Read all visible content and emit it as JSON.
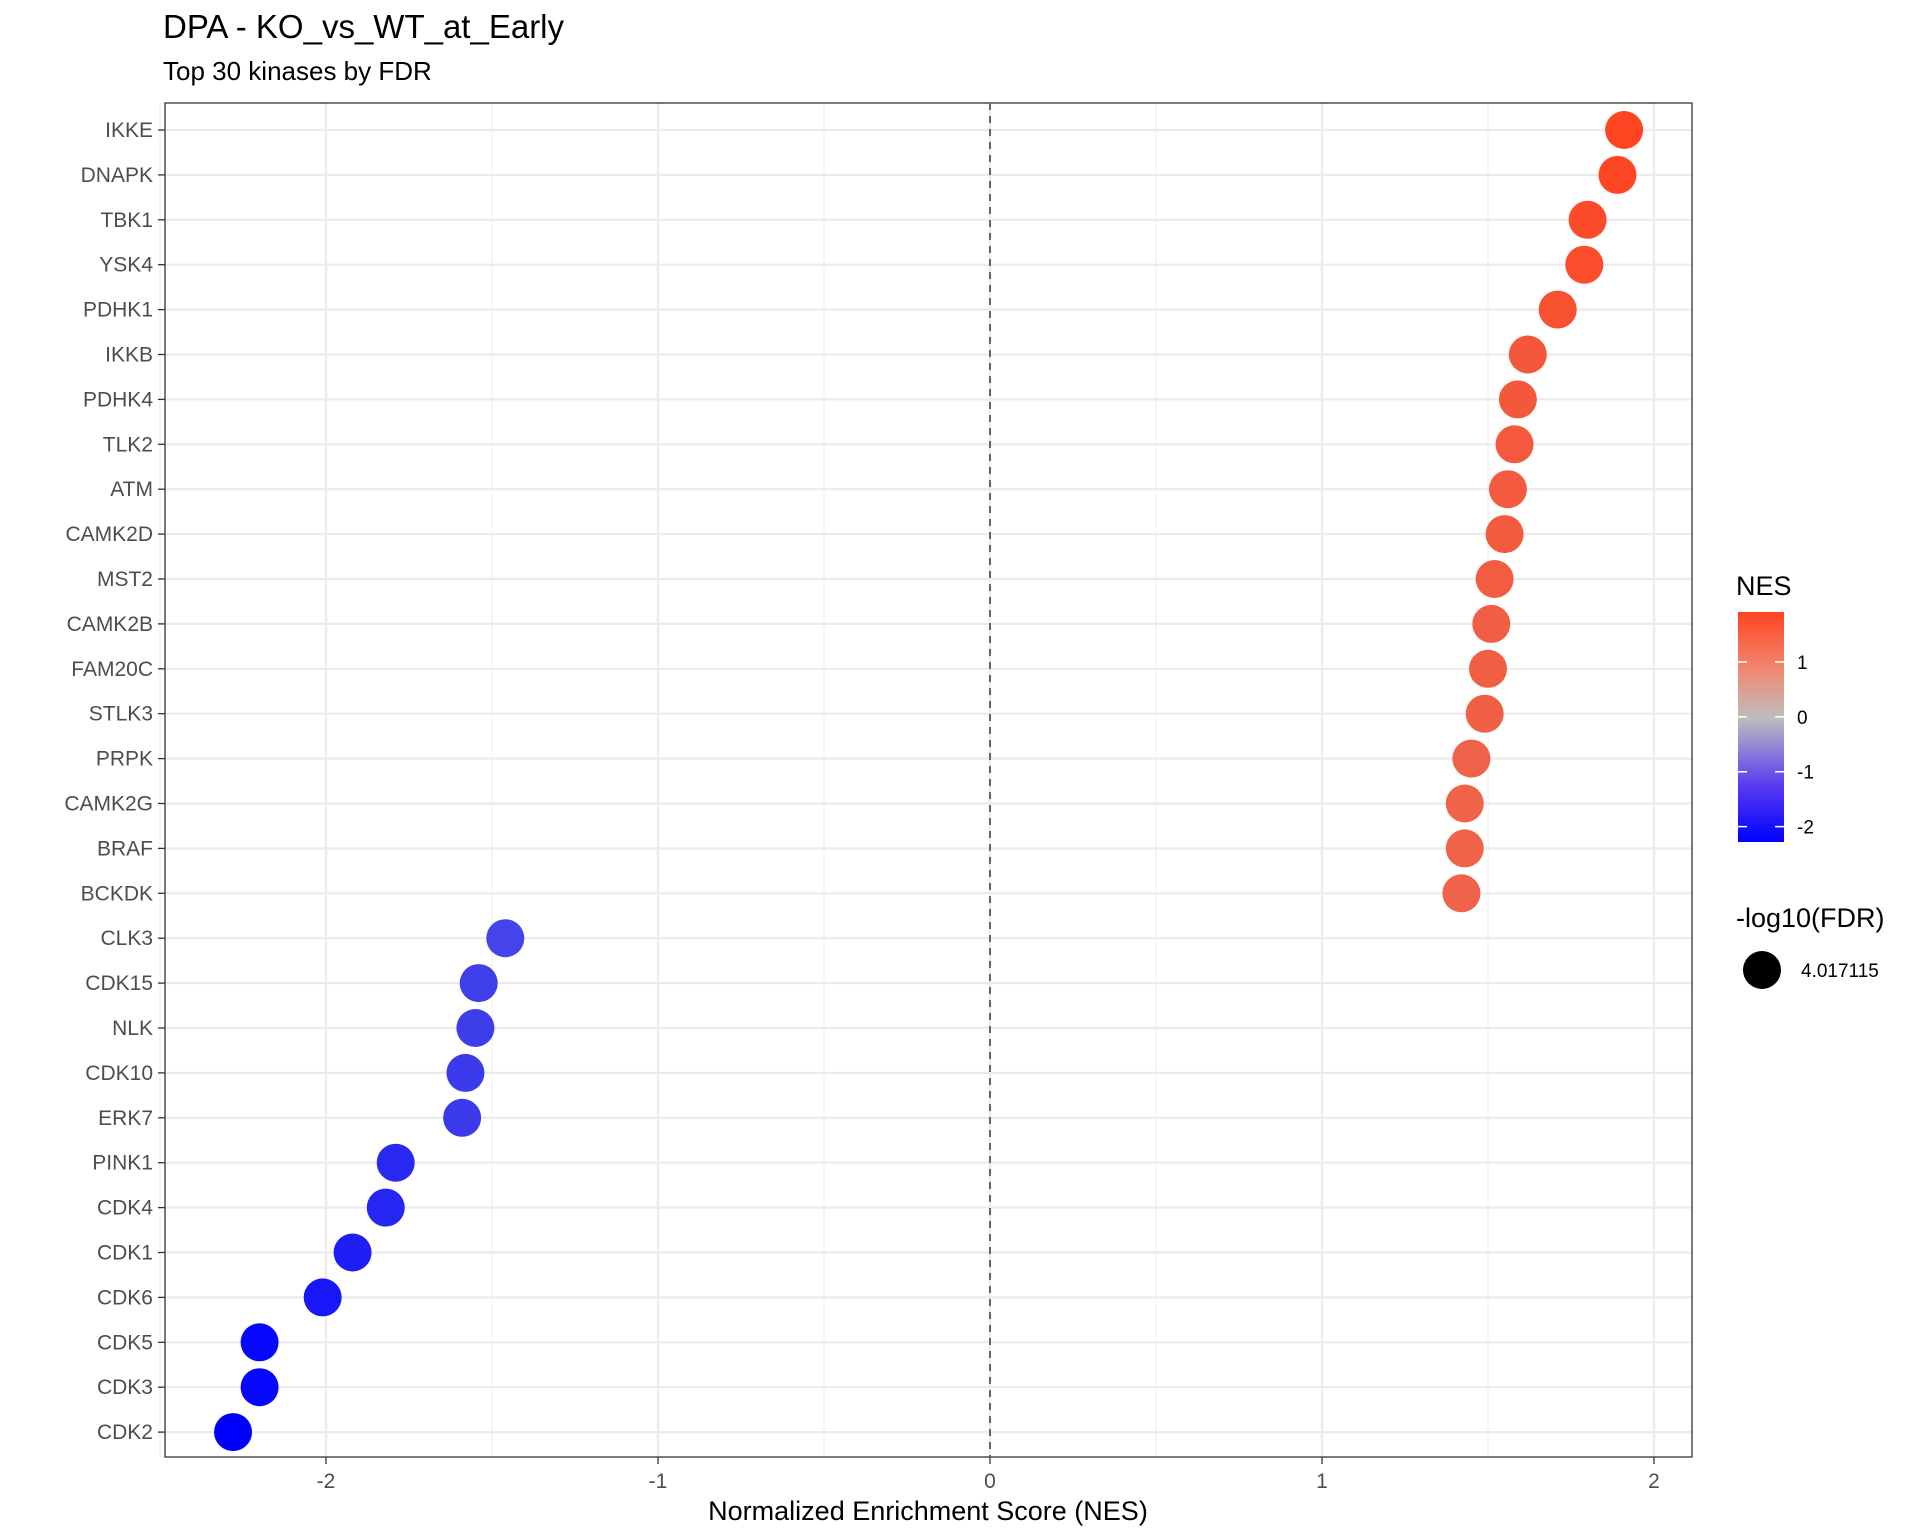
{
  "chart_data": {
    "type": "scatter",
    "title": "DPA - KO_vs_WT_at_Early",
    "subtitle": "Top 30 kinases by FDR",
    "xlabel": "Normalized Enrichment Score (NES)",
    "ylabel": "",
    "xlim": [
      -2.5,
      2.1
    ],
    "xticks": [
      -2,
      -1,
      0,
      1,
      2
    ],
    "grid": true,
    "reference_line": {
      "x": 0,
      "style": "dashed"
    },
    "categories": [
      "IKKE",
      "DNAPK",
      "TBK1",
      "YSK4",
      "PDHK1",
      "IKKB",
      "PDHK4",
      "TLK2",
      "ATM",
      "CAMK2D",
      "MST2",
      "CAMK2B",
      "FAM20C",
      "STLK3",
      "PRPK",
      "CAMK2G",
      "BRAF",
      "BCKDK",
      "CLK3",
      "CDK15",
      "NLK",
      "CDK10",
      "ERK7",
      "PINK1",
      "CDK4",
      "CDK1",
      "CDK6",
      "CDK5",
      "CDK3",
      "CDK2"
    ],
    "values": [
      1.91,
      1.89,
      1.8,
      1.79,
      1.71,
      1.62,
      1.59,
      1.58,
      1.56,
      1.55,
      1.52,
      1.51,
      1.5,
      1.49,
      1.45,
      1.43,
      1.43,
      1.42,
      -1.46,
      -1.54,
      -1.55,
      -1.58,
      -1.59,
      -1.79,
      -1.82,
      -1.92,
      -2.01,
      -2.2,
      -2.2,
      -2.28
    ],
    "color_scale": {
      "title": "NES",
      "low": "#0000ff",
      "mid": "#bebebe",
      "high": "#ff4422",
      "ticks": [
        1,
        0,
        -1,
        -2
      ],
      "tick_labels": [
        "1",
        "0",
        "-1",
        "-2"
      ],
      "range": [
        -2.28,
        1.91
      ]
    },
    "size_legend": {
      "title": "-log10(FDR)",
      "value_label": "4.017115",
      "value": 4.017115,
      "color": "#000000"
    },
    "legend_position": "right"
  }
}
